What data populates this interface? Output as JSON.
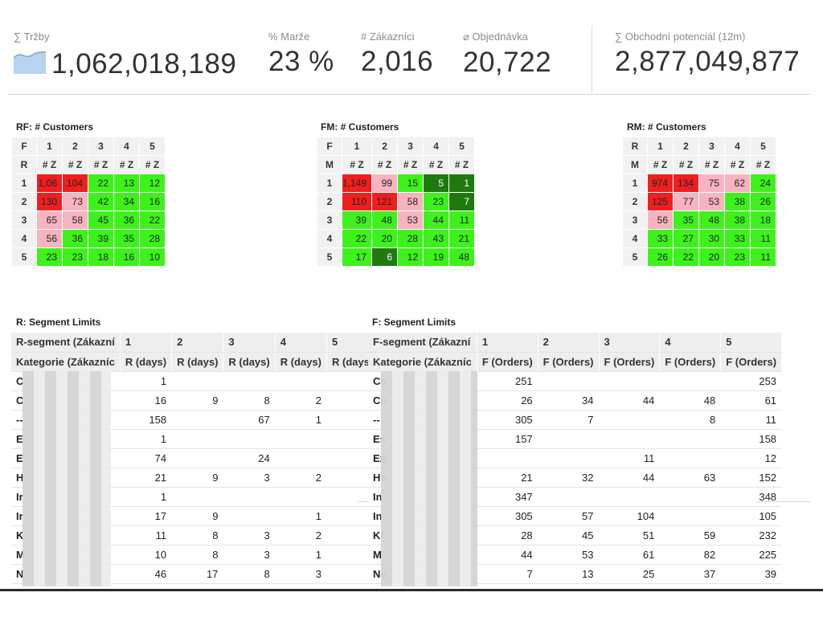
{
  "kpis": [
    {
      "label": "∑ Tržby",
      "value": "1,062,018,189"
    },
    {
      "label": "% Marže",
      "value": "23 %"
    },
    {
      "label": "# Zákazníci",
      "value": "2,016"
    },
    {
      "label": "⌀ Objednávka",
      "value": "20,722"
    },
    {
      "label": "∑ Obchodní potenciál (12m)",
      "value": "2,877,049,877"
    }
  ],
  "colors": {
    "red": "#ef1f1f",
    "pink": "#f7b3bf",
    "light_green": "#3df21b",
    "dark_green": "#1e7a0e"
  },
  "matrices": [
    {
      "title": "RF: # Customers",
      "col_axis": "F",
      "row_axis": "R",
      "cols": [
        "1",
        "2",
        "3",
        "4",
        "5"
      ],
      "sub": "# Z",
      "rows": [
        {
          "label": "1",
          "cells": [
            {
              "v": "1,06",
              "c": "red"
            },
            {
              "v": "104",
              "c": "red"
            },
            {
              "v": "22",
              "c": "lg"
            },
            {
              "v": "13",
              "c": "lg"
            },
            {
              "v": "12",
              "c": "lg"
            }
          ]
        },
        {
          "label": "2",
          "cells": [
            {
              "v": "130",
              "c": "red"
            },
            {
              "v": "73",
              "c": "pink"
            },
            {
              "v": "42",
              "c": "lg"
            },
            {
              "v": "34",
              "c": "lg"
            },
            {
              "v": "16",
              "c": "lg"
            }
          ]
        },
        {
          "label": "3",
          "cells": [
            {
              "v": "65",
              "c": "pink"
            },
            {
              "v": "58",
              "c": "pink"
            },
            {
              "v": "45",
              "c": "lg"
            },
            {
              "v": "36",
              "c": "lg"
            },
            {
              "v": "22",
              "c": "lg"
            }
          ]
        },
        {
          "label": "4",
          "cells": [
            {
              "v": "56",
              "c": "pink"
            },
            {
              "v": "36",
              "c": "lg"
            },
            {
              "v": "39",
              "c": "lg"
            },
            {
              "v": "35",
              "c": "lg"
            },
            {
              "v": "28",
              "c": "lg"
            }
          ]
        },
        {
          "label": "5",
          "cells": [
            {
              "v": "23",
              "c": "lg"
            },
            {
              "v": "23",
              "c": "lg"
            },
            {
              "v": "18",
              "c": "lg"
            },
            {
              "v": "16",
              "c": "lg"
            },
            {
              "v": "10",
              "c": "lg"
            }
          ]
        }
      ]
    },
    {
      "title": "FM: # Customers",
      "col_axis": "F",
      "row_axis": "M",
      "cols": [
        "1",
        "2",
        "3",
        "4",
        "5"
      ],
      "sub": "# Z",
      "rows": [
        {
          "label": "1",
          "cells": [
            {
              "v": "1,149",
              "c": "red"
            },
            {
              "v": "99",
              "c": "pink"
            },
            {
              "v": "15",
              "c": "lg"
            },
            {
              "v": "5",
              "c": "dg"
            },
            {
              "v": "1",
              "c": "dg"
            }
          ]
        },
        {
          "label": "2",
          "cells": [
            {
              "v": "110",
              "c": "red"
            },
            {
              "v": "121",
              "c": "red"
            },
            {
              "v": "58",
              "c": "pink"
            },
            {
              "v": "23",
              "c": "lg"
            },
            {
              "v": "7",
              "c": "dg"
            }
          ]
        },
        {
          "label": "3",
          "cells": [
            {
              "v": "39",
              "c": "lg"
            },
            {
              "v": "48",
              "c": "lg"
            },
            {
              "v": "53",
              "c": "pink"
            },
            {
              "v": "44",
              "c": "lg"
            },
            {
              "v": "11",
              "c": "lg"
            }
          ]
        },
        {
          "label": "4",
          "cells": [
            {
              "v": "22",
              "c": "lg"
            },
            {
              "v": "20",
              "c": "lg"
            },
            {
              "v": "28",
              "c": "lg"
            },
            {
              "v": "43",
              "c": "lg"
            },
            {
              "v": "21",
              "c": "lg"
            }
          ]
        },
        {
          "label": "5",
          "cells": [
            {
              "v": "17",
              "c": "lg"
            },
            {
              "v": "6",
              "c": "dg"
            },
            {
              "v": "12",
              "c": "lg"
            },
            {
              "v": "19",
              "c": "lg"
            },
            {
              "v": "48",
              "c": "lg"
            }
          ]
        }
      ]
    },
    {
      "title": "RM: # Customers",
      "col_axis": "R",
      "row_axis": "M",
      "cols": [
        "1",
        "2",
        "3",
        "4",
        "5"
      ],
      "sub": "# Z",
      "rows": [
        {
          "label": "1",
          "cells": [
            {
              "v": "974",
              "c": "red"
            },
            {
              "v": "134",
              "c": "red"
            },
            {
              "v": "75",
              "c": "pink"
            },
            {
              "v": "62",
              "c": "pink"
            },
            {
              "v": "24",
              "c": "lg"
            }
          ]
        },
        {
          "label": "2",
          "cells": [
            {
              "v": "125",
              "c": "red"
            },
            {
              "v": "77",
              "c": "pink"
            },
            {
              "v": "53",
              "c": "pink"
            },
            {
              "v": "38",
              "c": "lg"
            },
            {
              "v": "26",
              "c": "lg"
            }
          ]
        },
        {
          "label": "3",
          "cells": [
            {
              "v": "56",
              "c": "pink"
            },
            {
              "v": "35",
              "c": "lg"
            },
            {
              "v": "48",
              "c": "lg"
            },
            {
              "v": "38",
              "c": "lg"
            },
            {
              "v": "18",
              "c": "lg"
            }
          ]
        },
        {
          "label": "4",
          "cells": [
            {
              "v": "33",
              "c": "lg"
            },
            {
              "v": "27",
              "c": "lg"
            },
            {
              "v": "30",
              "c": "lg"
            },
            {
              "v": "33",
              "c": "lg"
            },
            {
              "v": "11",
              "c": "lg"
            }
          ]
        },
        {
          "label": "5",
          "cells": [
            {
              "v": "26",
              "c": "lg"
            },
            {
              "v": "22",
              "c": "lg"
            },
            {
              "v": "20",
              "c": "lg"
            },
            {
              "v": "23",
              "c": "lg"
            },
            {
              "v": "11",
              "c": "lg"
            }
          ]
        }
      ]
    }
  ],
  "limits": [
    {
      "title": "R: Segment Limits",
      "seg_header": "R-segment (Zákazní",
      "cat_header": "Kategorie (Zákazníc",
      "cols": [
        "1",
        "2",
        "3",
        "4",
        "5"
      ],
      "unit": "R (days)",
      "rows": [
        {
          "cat": "C",
          "v": [
            "1",
            "",
            "",
            "",
            ""
          ]
        },
        {
          "cat": "C",
          "v": [
            "16",
            "9",
            "8",
            "2",
            ""
          ]
        },
        {
          "cat": "--",
          "v": [
            "158",
            "",
            "67",
            "1",
            ""
          ]
        },
        {
          "cat": "E",
          "v": [
            "1",
            "",
            "",
            "",
            ""
          ]
        },
        {
          "cat": "E",
          "v": [
            "74",
            "",
            "24",
            "",
            ""
          ]
        },
        {
          "cat": "H",
          "v": [
            "21",
            "9",
            "3",
            "2",
            ""
          ]
        },
        {
          "cat": "Ir",
          "v": [
            "1",
            "",
            "",
            "",
            ""
          ]
        },
        {
          "cat": "Ir",
          "v": [
            "17",
            "9",
            "",
            "1",
            ""
          ]
        },
        {
          "cat": "K",
          "v": [
            "11",
            "8",
            "3",
            "2",
            ""
          ]
        },
        {
          "cat": "M",
          "v": [
            "10",
            "8",
            "3",
            "1",
            ""
          ]
        },
        {
          "cat": "N",
          "v": [
            "46",
            "17",
            "8",
            "3",
            ""
          ]
        }
      ]
    },
    {
      "title": "F: Segment Limits",
      "seg_header": "F-segment (Zákazní",
      "cat_header": "Kategorie (Zákazníc",
      "cols": [
        "1",
        "2",
        "3",
        "4",
        "5"
      ],
      "unit": "F (Orders)",
      "rows": [
        {
          "cat": "Ca",
          "v": [
            "251",
            "",
            "",
            "",
            "253"
          ]
        },
        {
          "cat": "Cu",
          "v": [
            "26",
            "34",
            "44",
            "48",
            "61"
          ]
        },
        {
          "cat": "--",
          "v": [
            "305",
            "7",
            "",
            "8",
            "11"
          ]
        },
        {
          "cat": "Es",
          "v": [
            "157",
            "",
            "",
            "",
            "158"
          ]
        },
        {
          "cat": "Ex",
          "v": [
            "",
            "",
            "11",
            "",
            "12"
          ]
        },
        {
          "cat": "Ho",
          "v": [
            "21",
            "32",
            "44",
            "63",
            "152"
          ]
        },
        {
          "cat": "In",
          "v": [
            "347",
            "",
            "",
            "",
            "348"
          ]
        },
        {
          "cat": "In",
          "v": [
            "305",
            "57",
            "104",
            "",
            "105"
          ]
        },
        {
          "cat": "Kl",
          "v": [
            "28",
            "45",
            "51",
            "59",
            "232"
          ]
        },
        {
          "cat": "M",
          "v": [
            "44",
            "53",
            "61",
            "82",
            "225"
          ]
        },
        {
          "cat": "Ne",
          "v": [
            "7",
            "13",
            "25",
            "37",
            "39"
          ]
        }
      ]
    }
  ]
}
